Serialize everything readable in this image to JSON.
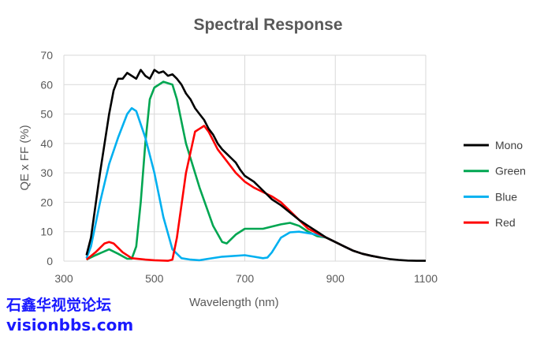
{
  "chart_data": {
    "type": "line",
    "title": "Spectral Response",
    "xlabel": "Wavelength (nm)",
    "ylabel": "QE x FF (%)",
    "xlim": [
      300,
      1100
    ],
    "ylim": [
      0,
      70
    ],
    "xticks": [
      300,
      500,
      700,
      900,
      1100
    ],
    "yticks": [
      0,
      10,
      20,
      30,
      40,
      50,
      60,
      70
    ],
    "grid": true,
    "legend_position": "right",
    "series": [
      {
        "name": "Mono",
        "color": "#000000",
        "x": [
          350,
          360,
          380,
          400,
          410,
          420,
          430,
          440,
          450,
          460,
          470,
          480,
          490,
          500,
          510,
          520,
          530,
          540,
          550,
          560,
          570,
          580,
          590,
          600,
          610,
          620,
          630,
          640,
          650,
          660,
          670,
          680,
          690,
          700,
          720,
          740,
          760,
          780,
          800,
          820,
          840,
          860,
          880,
          900,
          920,
          940,
          960,
          980,
          1000,
          1020,
          1040,
          1060,
          1080,
          1100
        ],
        "y": [
          2,
          8,
          30,
          50,
          58,
          62,
          62,
          64,
          63,
          62,
          65,
          63,
          62,
          65,
          64,
          64.5,
          63,
          63.5,
          62,
          60,
          57,
          55,
          52,
          50,
          48,
          45,
          43,
          40,
          38,
          36.5,
          35,
          33.5,
          31,
          29,
          27,
          24,
          21,
          19,
          16.5,
          14,
          12,
          10,
          8,
          6.5,
          5,
          3.5,
          2.5,
          1.8,
          1.2,
          0.7,
          0.4,
          0.2,
          0.1,
          0.1
        ]
      },
      {
        "name": "Green",
        "color": "#00a651",
        "x": [
          350,
          370,
          400,
          420,
          440,
          450,
          460,
          470,
          480,
          490,
          500,
          520,
          540,
          550,
          570,
          600,
          630,
          650,
          660,
          680,
          700,
          740,
          780,
          800,
          820,
          840,
          860,
          880,
          900,
          920,
          940,
          960,
          980,
          1000
        ],
        "y": [
          0.5,
          2,
          4,
          2.5,
          0.8,
          0.8,
          5,
          20,
          40,
          55,
          59,
          61,
          60,
          55,
          40,
          25,
          12,
          6.5,
          6,
          9,
          11,
          11,
          12.5,
          13,
          12,
          10,
          8.5,
          8,
          6.5,
          5,
          3.5,
          2.5,
          1.8,
          1.2
        ]
      },
      {
        "name": "Blue",
        "color": "#00b0f0",
        "x": [
          350,
          360,
          380,
          400,
          420,
          440,
          450,
          460,
          480,
          500,
          520,
          540,
          560,
          580,
          600,
          620,
          650,
          700,
          720,
          740,
          750,
          760,
          780,
          800,
          820,
          840,
          860,
          880,
          900,
          920,
          940,
          960,
          980,
          1000
        ],
        "y": [
          1,
          5,
          20,
          33,
          42,
          50,
          52,
          51,
          42,
          30,
          15,
          4,
          1,
          0.5,
          0.3,
          0.8,
          1.5,
          2,
          1.5,
          1,
          1.2,
          3,
          8,
          9.8,
          10,
          9.5,
          9,
          8,
          6.5,
          5,
          3.5,
          2.5,
          1.8,
          1.2
        ]
      },
      {
        "name": "Red",
        "color": "#ff0000",
        "x": [
          350,
          370,
          390,
          400,
          410,
          430,
          450,
          480,
          500,
          530,
          540,
          550,
          570,
          590,
          610,
          620,
          640,
          660,
          680,
          700,
          720,
          760,
          780,
          800,
          820,
          840,
          860,
          880,
          900,
          920,
          940,
          960,
          980,
          1000
        ],
        "y": [
          0.5,
          3,
          6,
          6.5,
          6,
          3,
          1,
          0.5,
          0.3,
          0.1,
          0.5,
          8,
          30,
          44,
          46,
          44,
          38,
          34,
          30,
          27,
          25,
          22,
          20,
          17,
          14,
          11,
          9.5,
          8,
          6.5,
          5,
          3.5,
          2.5,
          1.8,
          1.2
        ]
      }
    ]
  },
  "watermark": {
    "line1": "石鑫华视觉论坛",
    "line2": "visionbbs.com"
  }
}
